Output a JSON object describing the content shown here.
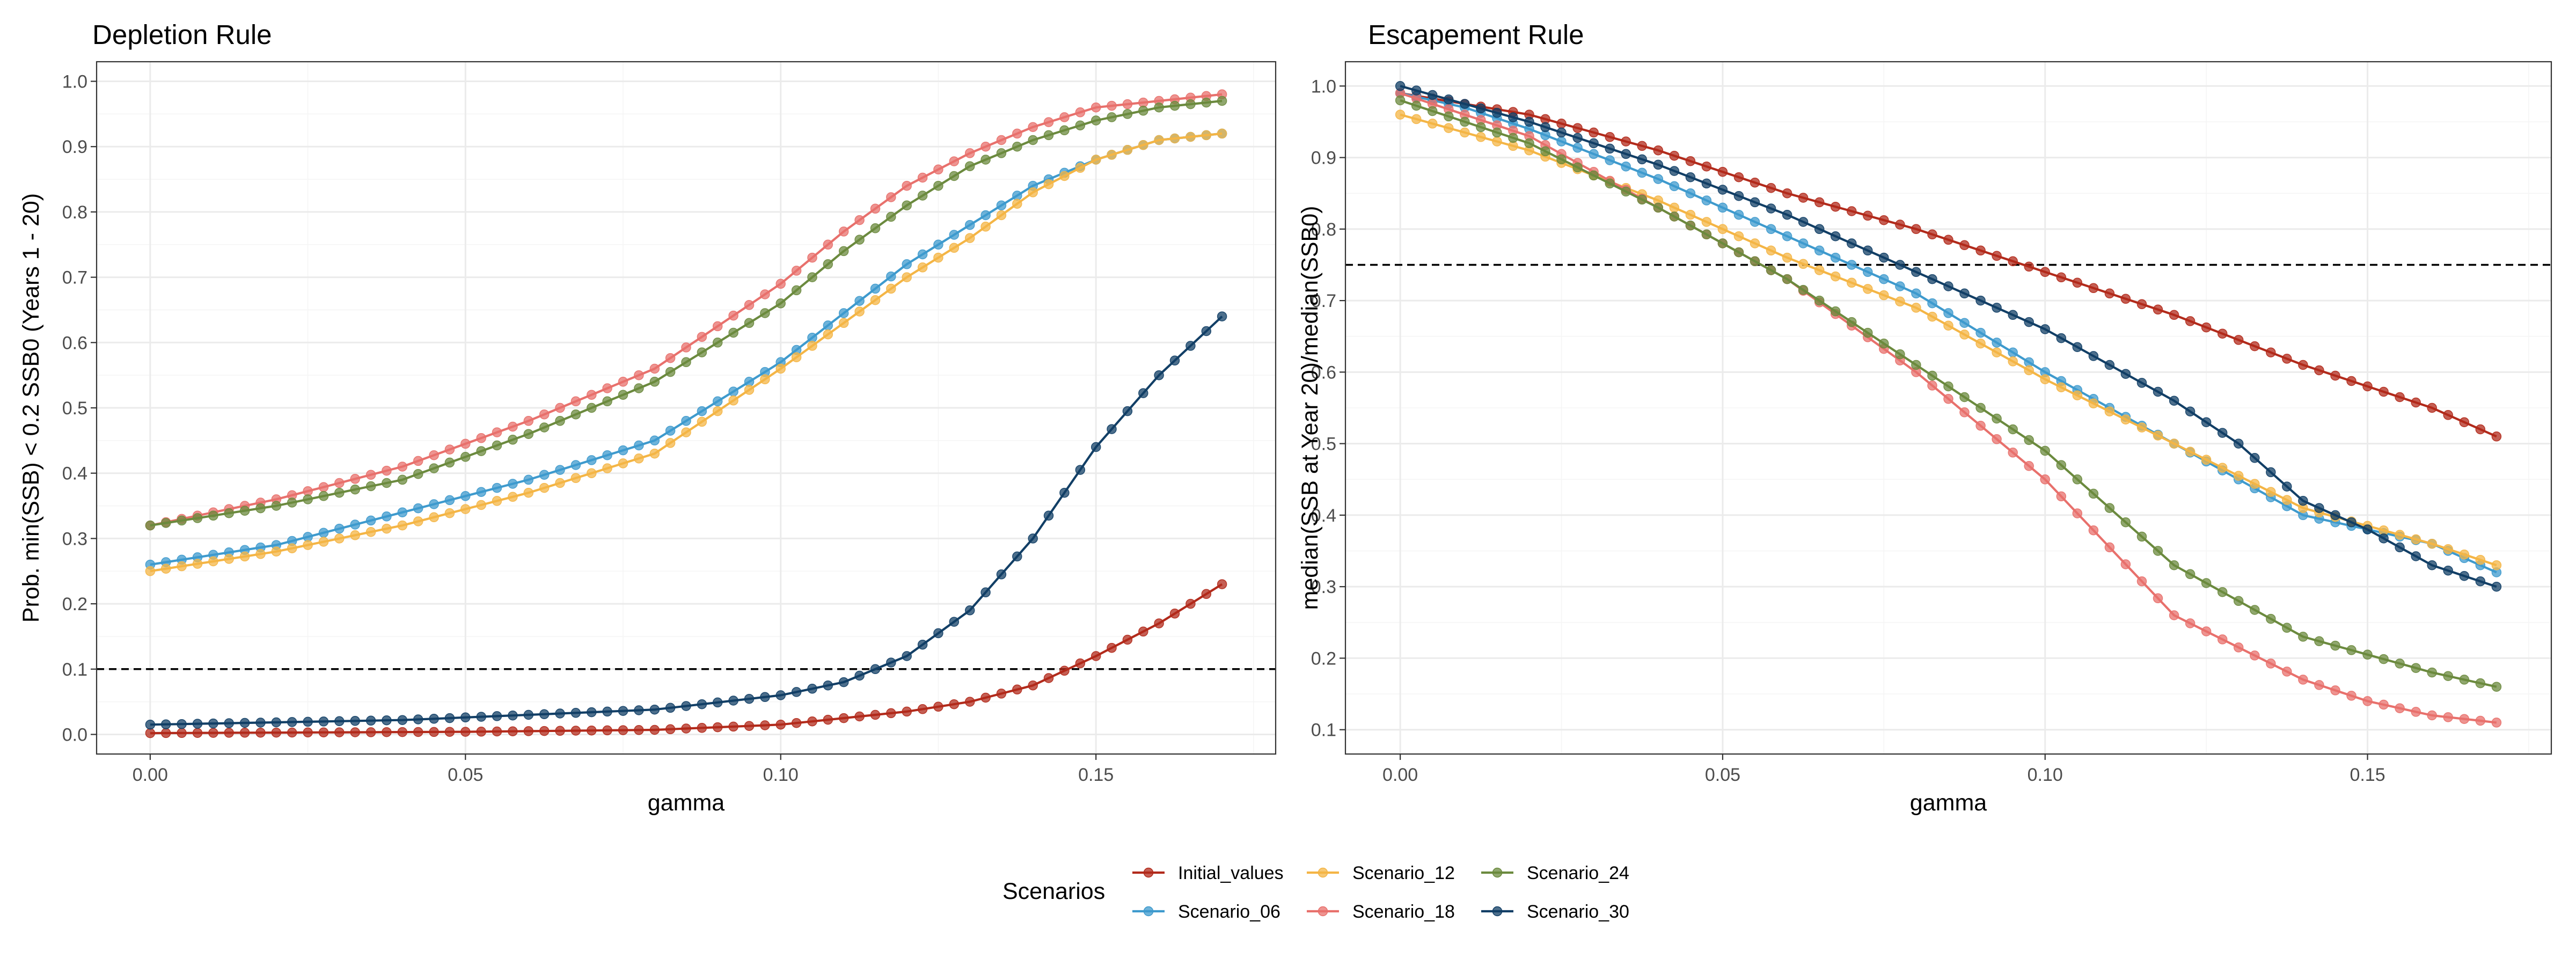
{
  "legend": {
    "title": "Scenarios",
    "items": [
      {
        "name": "Initial_values",
        "color": "#B22A1B"
      },
      {
        "name": "Scenario_06",
        "color": "#3E9ACD"
      },
      {
        "name": "Scenario_12",
        "color": "#F4B545"
      },
      {
        "name": "Scenario_18",
        "color": "#E8706C"
      },
      {
        "name": "Scenario_24",
        "color": "#6B8A3E"
      },
      {
        "name": "Scenario_30",
        "color": "#123F66"
      }
    ]
  },
  "chart_data": [
    {
      "type": "line",
      "title": "Depletion Rule",
      "xlabel": "gamma",
      "ylabel": "Prob. min(SSB) < 0.2 SSB0 (Years 1 - 20)",
      "xlim": [
        -0.0085,
        0.1785
      ],
      "ylim": [
        -0.03,
        1.03
      ],
      "x_ticks": [
        0,
        0.05,
        0.1,
        0.15
      ],
      "x_tick_labels": [
        "0.00",
        "0.05",
        "0.10",
        "0.15"
      ],
      "y_ticks": [
        0,
        0.1,
        0.2,
        0.3,
        0.4,
        0.5,
        0.6,
        0.7,
        0.8,
        0.9,
        1.0
      ],
      "y_tick_labels": [
        "0.0",
        "0.1",
        "0.2",
        "0.3",
        "0.4",
        "0.5",
        "0.6",
        "0.7",
        "0.8",
        "0.9",
        "1.0"
      ],
      "reference_line_y": 0.1,
      "grid": true,
      "legend_position": "bottom",
      "series": [
        {
          "name": "Initial_values",
          "color": "#B22A1B",
          "knots": [
            [
              0,
              0.002
            ],
            [
              0.05,
              0.004
            ],
            [
              0.08,
              0.007
            ],
            [
              0.1,
              0.015
            ],
            [
              0.12,
              0.035
            ],
            [
              0.13,
              0.05
            ],
            [
              0.14,
              0.075
            ],
            [
              0.15,
              0.12
            ],
            [
              0.16,
              0.17
            ],
            [
              0.17,
              0.23
            ]
          ]
        },
        {
          "name": "Scenario_06",
          "color": "#3E9ACD",
          "knots": [
            [
              0,
              0.26
            ],
            [
              0.02,
              0.29
            ],
            [
              0.04,
              0.34
            ],
            [
              0.06,
              0.39
            ],
            [
              0.08,
              0.45
            ],
            [
              0.1,
              0.57
            ],
            [
              0.12,
              0.72
            ],
            [
              0.13,
              0.78
            ],
            [
              0.14,
              0.84
            ],
            [
              0.15,
              0.88
            ],
            [
              0.16,
              0.91
            ],
            [
              0.17,
              0.92
            ]
          ]
        },
        {
          "name": "Scenario_12",
          "color": "#F4B545",
          "knots": [
            [
              0,
              0.25
            ],
            [
              0.02,
              0.28
            ],
            [
              0.04,
              0.32
            ],
            [
              0.06,
              0.37
            ],
            [
              0.08,
              0.43
            ],
            [
              0.1,
              0.56
            ],
            [
              0.12,
              0.7
            ],
            [
              0.13,
              0.76
            ],
            [
              0.14,
              0.83
            ],
            [
              0.15,
              0.88
            ],
            [
              0.16,
              0.91
            ],
            [
              0.17,
              0.92
            ]
          ]
        },
        {
          "name": "Scenario_18",
          "color": "#E8706C",
          "knots": [
            [
              0,
              0.32
            ],
            [
              0.02,
              0.36
            ],
            [
              0.04,
              0.41
            ],
            [
              0.06,
              0.48
            ],
            [
              0.08,
              0.56
            ],
            [
              0.1,
              0.69
            ],
            [
              0.11,
              0.77
            ],
            [
              0.12,
              0.84
            ],
            [
              0.13,
              0.89
            ],
            [
              0.14,
              0.93
            ],
            [
              0.15,
              0.96
            ],
            [
              0.16,
              0.97
            ],
            [
              0.17,
              0.98
            ]
          ]
        },
        {
          "name": "Scenario_24",
          "color": "#6B8A3E",
          "knots": [
            [
              0,
              0.32
            ],
            [
              0.02,
              0.35
            ],
            [
              0.04,
              0.39
            ],
            [
              0.06,
              0.46
            ],
            [
              0.08,
              0.54
            ],
            [
              0.1,
              0.66
            ],
            [
              0.11,
              0.74
            ],
            [
              0.12,
              0.81
            ],
            [
              0.13,
              0.87
            ],
            [
              0.14,
              0.91
            ],
            [
              0.15,
              0.94
            ],
            [
              0.16,
              0.96
            ],
            [
              0.17,
              0.97
            ]
          ]
        },
        {
          "name": "Scenario_30",
          "color": "#123F66",
          "knots": [
            [
              0,
              0.015
            ],
            [
              0.04,
              0.022
            ],
            [
              0.08,
              0.038
            ],
            [
              0.1,
              0.06
            ],
            [
              0.11,
              0.08
            ],
            [
              0.12,
              0.12
            ],
            [
              0.13,
              0.19
            ],
            [
              0.14,
              0.3
            ],
            [
              0.15,
              0.44
            ],
            [
              0.16,
              0.55
            ],
            [
              0.17,
              0.64
            ]
          ]
        }
      ]
    },
    {
      "type": "line",
      "title": "Escapement Rule",
      "xlabel": "gamma",
      "ylabel": "median(SSB at Year 20)/median(SSB0)",
      "xlim": [
        -0.0085,
        0.1785
      ],
      "ylim": [
        0.066,
        1.034
      ],
      "x_ticks": [
        0,
        0.05,
        0.1,
        0.15
      ],
      "x_tick_labels": [
        "0.00",
        "0.05",
        "0.10",
        "0.15"
      ],
      "y_ticks": [
        0.1,
        0.2,
        0.3,
        0.4,
        0.5,
        0.6,
        0.7,
        0.8,
        0.9,
        1.0
      ],
      "y_tick_labels": [
        "0.1",
        "0.2",
        "0.3",
        "0.4",
        "0.5",
        "0.6",
        "0.7",
        "0.8",
        "0.9",
        "1.0"
      ],
      "reference_line_y": 0.75,
      "grid": true,
      "legend_position": "bottom",
      "series": [
        {
          "name": "Initial_values",
          "color": "#B22A1B",
          "knots": [
            [
              0,
              0.99
            ],
            [
              0.02,
              0.96
            ],
            [
              0.04,
              0.91
            ],
            [
              0.06,
              0.85
            ],
            [
              0.08,
              0.8
            ],
            [
              0.1,
              0.74
            ],
            [
              0.12,
              0.68
            ],
            [
              0.14,
              0.61
            ],
            [
              0.16,
              0.55
            ],
            [
              0.17,
              0.51
            ]
          ]
        },
        {
          "name": "Scenario_06",
          "color": "#3E9ACD",
          "knots": [
            [
              0,
              0.99
            ],
            [
              0.01,
              0.97
            ],
            [
              0.02,
              0.94
            ],
            [
              0.04,
              0.87
            ],
            [
              0.06,
              0.79
            ],
            [
              0.08,
              0.71
            ],
            [
              0.1,
              0.6
            ],
            [
              0.12,
              0.5
            ],
            [
              0.14,
              0.4
            ],
            [
              0.16,
              0.36
            ],
            [
              0.17,
              0.32
            ]
          ]
        },
        {
          "name": "Scenario_12",
          "color": "#F4B545",
          "knots": [
            [
              0,
              0.96
            ],
            [
              0.02,
              0.91
            ],
            [
              0.04,
              0.84
            ],
            [
              0.06,
              0.76
            ],
            [
              0.08,
              0.69
            ],
            [
              0.1,
              0.59
            ],
            [
              0.12,
              0.5
            ],
            [
              0.14,
              0.41
            ],
            [
              0.16,
              0.36
            ],
            [
              0.17,
              0.33
            ]
          ]
        },
        {
          "name": "Scenario_18",
          "color": "#E8706C",
          "knots": [
            [
              0,
              0.99
            ],
            [
              0.02,
              0.93
            ],
            [
              0.04,
              0.83
            ],
            [
              0.06,
              0.73
            ],
            [
              0.08,
              0.6
            ],
            [
              0.1,
              0.45
            ],
            [
              0.12,
              0.26
            ],
            [
              0.14,
              0.17
            ],
            [
              0.15,
              0.14
            ],
            [
              0.16,
              0.12
            ],
            [
              0.17,
              0.11
            ]
          ]
        },
        {
          "name": "Scenario_24",
          "color": "#6B8A3E",
          "knots": [
            [
              0,
              0.98
            ],
            [
              0.02,
              0.92
            ],
            [
              0.04,
              0.83
            ],
            [
              0.06,
              0.73
            ],
            [
              0.08,
              0.61
            ],
            [
              0.1,
              0.49
            ],
            [
              0.12,
              0.33
            ],
            [
              0.14,
              0.23
            ],
            [
              0.16,
              0.18
            ],
            [
              0.17,
              0.16
            ]
          ]
        },
        {
          "name": "Scenario_30",
          "color": "#123F66",
          "knots": [
            [
              0,
              1.0
            ],
            [
              0.02,
              0.95
            ],
            [
              0.04,
              0.89
            ],
            [
              0.06,
              0.82
            ],
            [
              0.08,
              0.74
            ],
            [
              0.1,
              0.66
            ],
            [
              0.12,
              0.56
            ],
            [
              0.13,
              0.5
            ],
            [
              0.14,
              0.42
            ],
            [
              0.15,
              0.38
            ],
            [
              0.16,
              0.33
            ],
            [
              0.17,
              0.3
            ]
          ]
        }
      ]
    }
  ]
}
